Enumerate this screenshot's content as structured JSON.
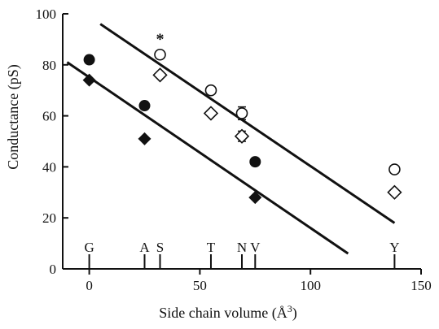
{
  "chart_data": {
    "type": "scatter",
    "xlabel": "Side chain volume (Å",
    "xlabel_sup": "3",
    "xlabel_close": ")",
    "ylabel": "Conductance (pS)",
    "xlim": [
      -12,
      150
    ],
    "ylim": [
      0,
      100
    ],
    "xticks": [
      0,
      50,
      100,
      150
    ],
    "yticks": [
      0,
      20,
      40,
      60,
      80,
      100
    ],
    "grid": false,
    "residues": [
      {
        "label": "G",
        "x": 0
      },
      {
        "label": "A",
        "x": 25
      },
      {
        "label": "S",
        "x": 32
      },
      {
        "label": "T",
        "x": 55
      },
      {
        "label": "N",
        "x": 69
      },
      {
        "label": "V",
        "x": 75
      },
      {
        "label": "Y",
        "x": 138
      }
    ],
    "series": [
      {
        "marker": "filled-circle",
        "points": [
          {
            "x": 0,
            "y": 82
          },
          {
            "x": 25,
            "y": 64
          },
          {
            "x": 75,
            "y": 42
          }
        ]
      },
      {
        "marker": "filled-diamond",
        "points": [
          {
            "x": 0,
            "y": 74
          },
          {
            "x": 25,
            "y": 51
          },
          {
            "x": 75,
            "y": 28
          }
        ]
      },
      {
        "marker": "open-circle",
        "points": [
          {
            "x": 32,
            "y": 84
          },
          {
            "x": 55,
            "y": 70
          },
          {
            "x": 69,
            "y": 61,
            "err": 2.5
          },
          {
            "x": 138,
            "y": 39
          }
        ]
      },
      {
        "marker": "open-diamond",
        "points": [
          {
            "x": 32,
            "y": 76
          },
          {
            "x": 55,
            "y": 61
          },
          {
            "x": 69,
            "y": 52,
            "err": 2
          },
          {
            "x": 138,
            "y": 30
          }
        ]
      }
    ],
    "fit_lines": [
      {
        "x": [
          5,
          138
        ],
        "y": [
          96,
          18
        ]
      },
      {
        "x": [
          -10,
          117
        ],
        "y": [
          81,
          6
        ]
      }
    ],
    "annotations": [
      {
        "text": "*",
        "x": 32,
        "y": 88
      }
    ]
  }
}
